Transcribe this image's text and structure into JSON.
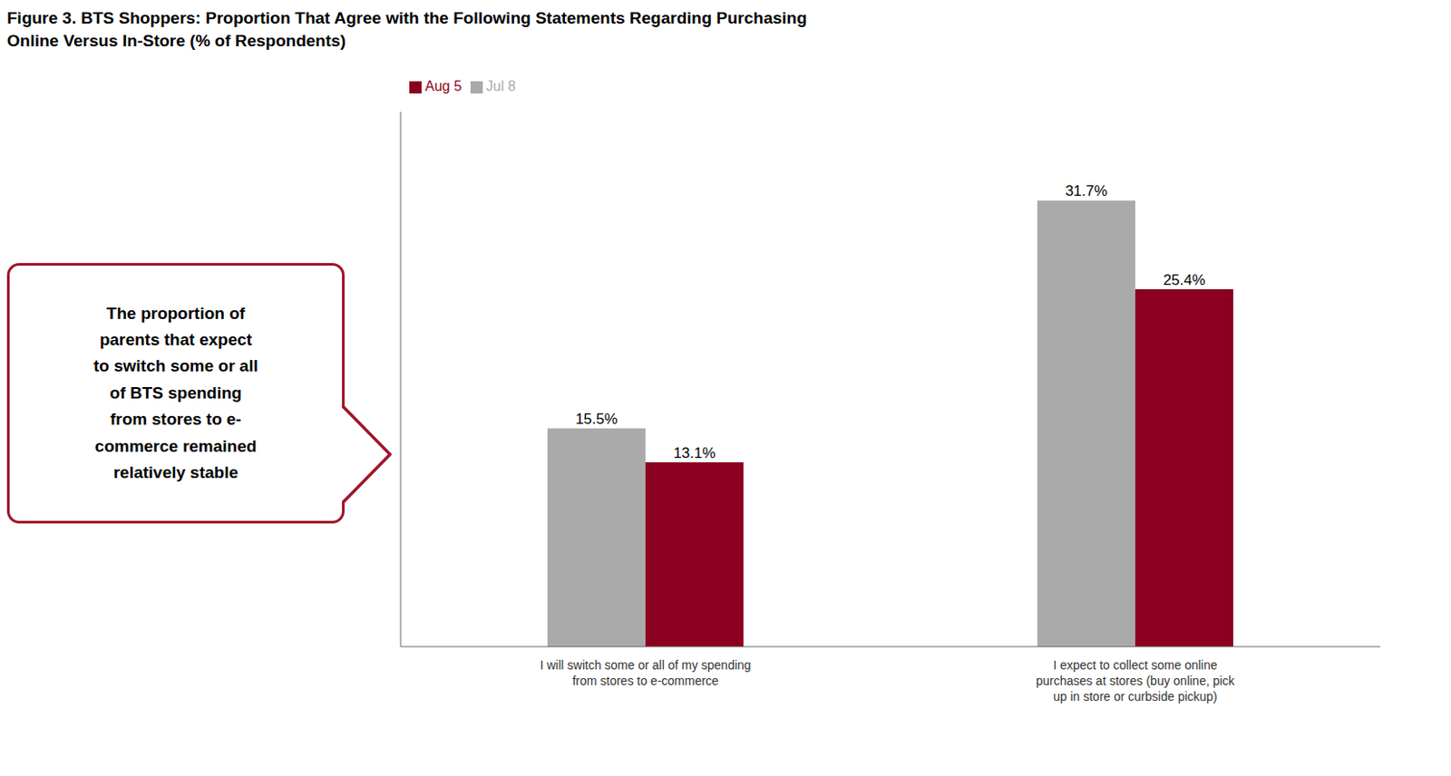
{
  "chart_data": {
    "type": "bar",
    "title": "Figure 3. BTS Shoppers: Proportion That Agree with the Following Statements Regarding Purchasing\nOnline Versus In-Store (% of Respondents)",
    "categories": [
      "I will switch some or all of my spending\nfrom stores to e-commerce",
      "I expect to collect some online\npurchases at stores (buy online, pick\nup in store or curbside pickup)"
    ],
    "series": [
      {
        "name": "Jul 8",
        "color": "#AAAAAA",
        "values": [
          15.5,
          31.7
        ],
        "value_labels": [
          "15.5%",
          "31.7%"
        ]
      },
      {
        "name": "Aug 5",
        "color": "#8B0020",
        "values": [
          13.1,
          25.4
        ],
        "value_labels": [
          "13.1%",
          "25.4%"
        ]
      }
    ],
    "ylim": [
      0,
      38
    ],
    "grid": false,
    "legend": "upper left",
    "data_labels": true,
    "tick_labels": "x",
    "annotations": [
      {
        "text": "The proportion of\nparents that expect\nto switch some or all\nof BTS spending\nfrom stores to e-\ncommerce remained\nrelatively stable",
        "color": "#A0152A"
      }
    ]
  }
}
